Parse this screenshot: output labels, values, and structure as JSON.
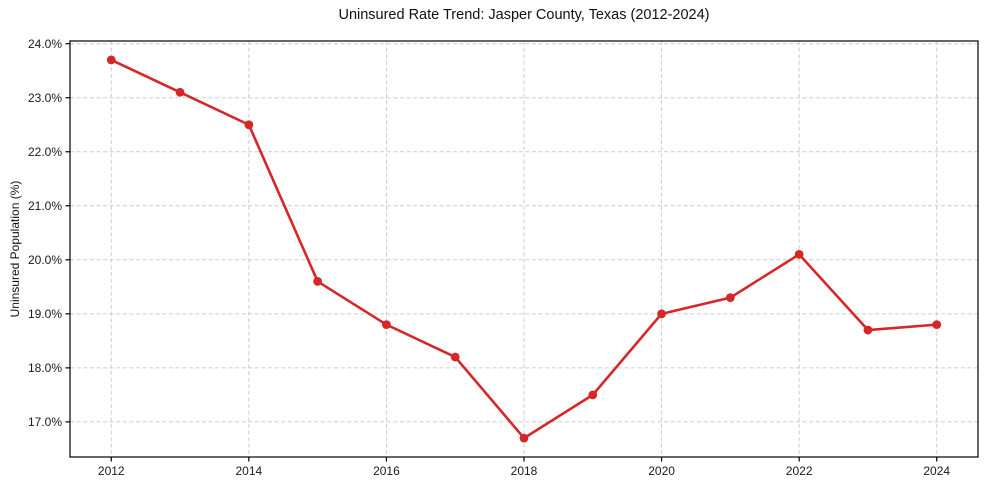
{
  "chart_data": {
    "type": "line",
    "title": "Uninsured Rate Trend: Jasper County, Texas (2012-2024)",
    "ylabel": "Uninsured Population (%)",
    "xlabel": "",
    "x": [
      2012,
      2013,
      2014,
      2015,
      2016,
      2017,
      2018,
      2019,
      2020,
      2021,
      2022,
      2023,
      2024
    ],
    "values": [
      23.7,
      23.1,
      22.5,
      19.6,
      18.8,
      18.2,
      16.7,
      17.5,
      19.0,
      19.3,
      20.1,
      18.7,
      18.8
    ],
    "x_tick_values": [
      2012,
      2014,
      2016,
      2018,
      2020,
      2022,
      2024
    ],
    "x_tick_labels": [
      "2012",
      "2014",
      "2016",
      "2018",
      "2020",
      "2022",
      "2024"
    ],
    "y_tick_values": [
      17,
      18,
      19,
      20,
      21,
      22,
      23,
      24
    ],
    "y_tick_labels": [
      "17.0%",
      "18.0%",
      "19.0%",
      "20.0%",
      "21.0%",
      "22.0%",
      "23.0%",
      "24.0%"
    ],
    "xlim": [
      2011.4,
      2024.6
    ],
    "ylim": [
      16.35,
      24.05
    ],
    "grid": true,
    "grid_style": "dashed",
    "legend_position": "none",
    "marker": "circle",
    "line_color": "#d62728"
  },
  "style": {
    "background": "#ffffff",
    "grid_color": "#cccccc",
    "axis_color": "#000000",
    "text_color": "#1a1a1a",
    "accent": "#d62728"
  }
}
